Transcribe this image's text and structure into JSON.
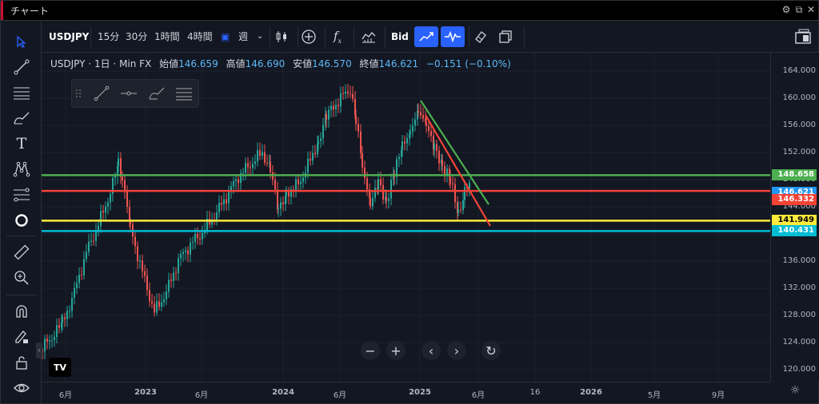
{
  "window": {
    "title": "チャート"
  },
  "toolbar": {
    "symbol": "USDJPY",
    "intervals": [
      "15分",
      "30分",
      "1時間",
      "4時間"
    ],
    "interval_week": "週",
    "price_type": "Bid"
  },
  "legend": {
    "symbol": "USDJPY",
    "interval": "1日",
    "source": "Min FX",
    "open_label": "始値",
    "open": "146.659",
    "high_label": "高値",
    "high": "146.690",
    "low_label": "安値",
    "low": "146.570",
    "close_label": "終値",
    "close": "146.621",
    "change": "−0.151 (−0.10%)"
  },
  "price_axis": {
    "ticks": [
      "164.000",
      "160.000",
      "156.000",
      "152.000",
      "148.000",
      "144.000",
      "140.000",
      "136.000",
      "132.000",
      "128.000",
      "124.000",
      "120.000"
    ]
  },
  "time_axis": {
    "ticks": [
      "6月",
      "2023",
      "6月",
      "2024",
      "6月",
      "2025",
      "6月",
      "16",
      "2026",
      "5月",
      "9月"
    ]
  },
  "levels": [
    {
      "price": "148.658",
      "color": "#4caf50"
    },
    {
      "price": "146.621",
      "color": "#2196f3"
    },
    {
      "price": "146.332",
      "color": "#f44336"
    },
    {
      "price": "141.949",
      "color": "#ffeb3b"
    },
    {
      "price": "140.431",
      "color": "#00bcd4"
    }
  ],
  "colors": {
    "up": "#26a69a",
    "down": "#ef5350",
    "background": "#131722",
    "accent": "#2962ff"
  }
}
